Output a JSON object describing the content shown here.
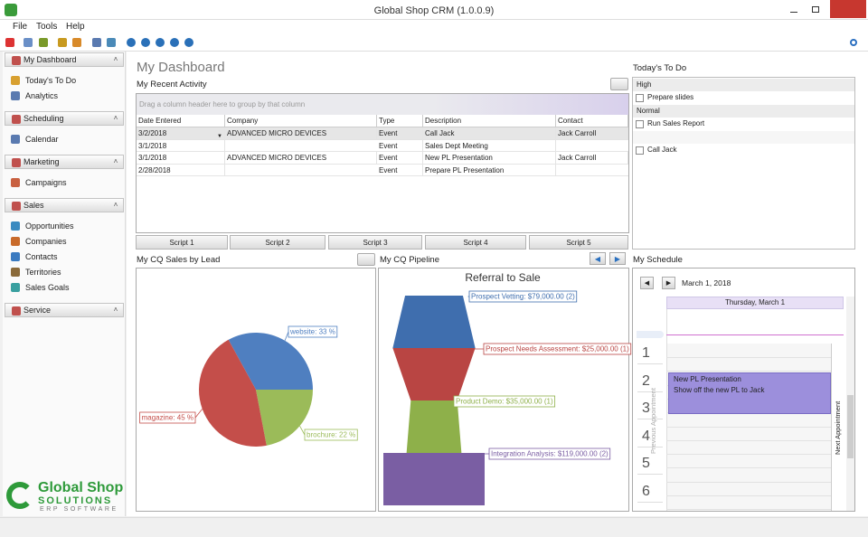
{
  "window": {
    "title": "Global Shop CRM (1.0.0.9)"
  },
  "menu": [
    "File",
    "Tools",
    "Help"
  ],
  "sidebar": [
    {
      "title": "My Dashboard",
      "items": [
        "Today's To Do",
        "Analytics"
      ]
    },
    {
      "title": "Scheduling",
      "items": [
        "Calendar"
      ]
    },
    {
      "title": "Marketing",
      "items": [
        "Campaigns"
      ]
    },
    {
      "title": "Sales",
      "items": [
        "Opportunities",
        "Companies",
        "Contacts",
        "Territories",
        "Sales Goals"
      ]
    },
    {
      "title": "Service",
      "items": []
    }
  ],
  "logo": {
    "name": "Global Shop",
    "line2": "SOLUTIONS",
    "line3": "ERP SOFTWARE"
  },
  "dashboard_title": "My Dashboard",
  "recent_activity": {
    "title": "My Recent Activity",
    "group_hint": "Drag a column header here to group by that column",
    "columns": [
      "Date Entered",
      "Company",
      "Type",
      "Description",
      "Contact"
    ],
    "rows": [
      [
        "3/2/2018",
        "ADVANCED MICRO DEVICES",
        "Event",
        "Call Jack",
        "Jack Carroll"
      ],
      [
        "3/1/2018",
        null,
        "Event",
        "Sales Dept Meeting",
        null
      ],
      [
        "3/1/2018",
        "ADVANCED MICRO DEVICES",
        "Event",
        "New PL Presentation",
        "Jack Carroll"
      ],
      [
        "2/28/2018",
        null,
        "Event",
        "Prepare PL Presentation",
        null
      ]
    ]
  },
  "scripts": [
    "Script 1",
    "Script 2",
    "Script 3",
    "Script 4",
    "Script 5"
  ],
  "todo": {
    "title": "Today's To Do",
    "groups": [
      {
        "name": "High",
        "items": [
          "Prepare slides"
        ]
      },
      {
        "name": "Normal",
        "items": [
          "Run Sales Report"
        ]
      },
      {
        "name": null,
        "items": [
          "Call Jack"
        ]
      }
    ]
  },
  "chart_data": [
    {
      "type": "pie",
      "title": "My CQ Sales by Lead",
      "values": [
        33,
        22,
        45
      ],
      "value_labels": [
        "website: 33 %",
        "brochure: 22 %",
        "magazine: 45 %"
      ],
      "colors": [
        "#4f7fc0",
        "#9bbb59",
        "#c44e4a"
      ]
    },
    {
      "type": "funnel",
      "panel_title": "My CQ Pipeline",
      "title": "Referral to Sale",
      "values": [
        79000,
        25000,
        35000,
        119000
      ],
      "value_labels": [
        "Prospect Vetting: $79,000.00 (2)",
        "Prospect Needs Assessment: $25,000.00 (1)",
        "Product Demo: $35,000.00 (1)",
        "Integration Analysis: $119,000.00 (2)"
      ],
      "colors": [
        "#3f6eae",
        "#b94543",
        "#8eb04a",
        "#7a5ea3"
      ]
    }
  ],
  "schedule": {
    "title": "My Schedule",
    "date": "March 1, 2018",
    "day": "Thursday, March 1",
    "hours": [
      1,
      2,
      3,
      4,
      5,
      6
    ],
    "appointment": {
      "subject": "New PL Presentation",
      "description": "Show off the new PL to Jack"
    },
    "previous": "Previous Appointment",
    "next": "Next Appointment"
  }
}
